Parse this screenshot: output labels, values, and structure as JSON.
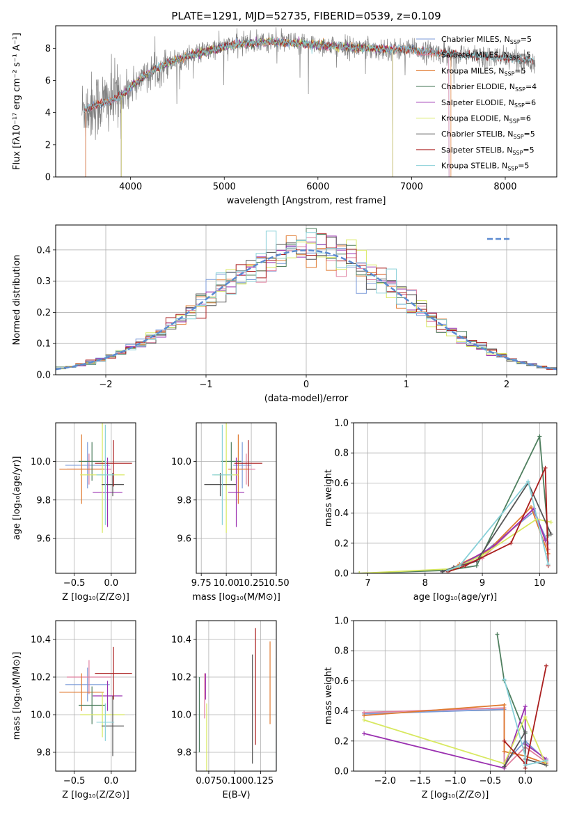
{
  "colors": {
    "Chabrier MILES": "#7a9ad8",
    "Salpeter MILES": "#e07f9f",
    "Kroupa MILES": "#e07a30",
    "Chabrier ELODIE": "#4f7f5f",
    "Salpeter ELODIE": "#9a30b0",
    "Kroupa ELODIE": "#d8e860",
    "Chabrier STELIB": "#555555",
    "Salpeter STELIB": "#aa1e1e",
    "Kroupa STELIB": "#88d0d8"
  },
  "chart_data": [
    {
      "id": "spectrum",
      "type": "line",
      "title": "PLATE=1291, MJD=52735, FIBERID=0539, z=0.109",
      "xlabel": "wavelength [Angstrom, rest frame]",
      "ylabel": "Flux [fλ10⁻¹⁷ erg cm⁻² s⁻¹ A⁻¹]",
      "xlim": [
        3200,
        8550
      ],
      "ylim": [
        0,
        9.4
      ],
      "xticks": [
        "4000",
        "5000",
        "6000",
        "7000",
        "8000"
      ],
      "yticks": [
        "0",
        "2",
        "4",
        "6",
        "8"
      ],
      "grid": false,
      "legend_position": "top-right",
      "legend": [
        "Chabrier MILES, N_SSP=5",
        "Salpeter MILES, N_SSP=5",
        "Kroupa MILES, N_SSP=5",
        "Chabrier ELODIE, N_SSP=4",
        "Salpeter ELODIE, N_SSP=6",
        "Kroupa ELODIE, N_SSP=6",
        "Chabrier STELIB, N_SSP=5",
        "Salpeter STELIB, N_SSP=5",
        "Kroupa STELIB, N_SSP=5"
      ],
      "data_continuum": [
        [
          3500,
          4.2
        ],
        [
          3700,
          4.6
        ],
        [
          3900,
          5.0
        ],
        [
          4000,
          5.6
        ],
        [
          4200,
          6.5
        ],
        [
          4400,
          7.1
        ],
        [
          4600,
          7.5
        ],
        [
          4800,
          7.8
        ],
        [
          5000,
          8.1
        ],
        [
          5200,
          8.3
        ],
        [
          5500,
          8.4
        ],
        [
          6000,
          8.2
        ],
        [
          6500,
          8.0
        ],
        [
          7000,
          7.9
        ],
        [
          7500,
          7.6
        ],
        [
          8000,
          7.4
        ],
        [
          8300,
          7.2
        ]
      ],
      "data_x_range": [
        3480,
        8320
      ]
    },
    {
      "id": "residuals",
      "type": "histogram",
      "xlabel": "(data-model)/error",
      "ylabel": "Normed distribution",
      "xlim": [
        -2.5,
        2.5
      ],
      "ylim": [
        0,
        0.48
      ],
      "xticks": [
        "−2",
        "−1",
        "0",
        "1",
        "2"
      ],
      "yticks": [
        "0.0",
        "0.1",
        "0.2",
        "0.3",
        "0.4"
      ],
      "grid": true,
      "reference_curve": "N(0,1)",
      "bin_width": 0.1
    },
    {
      "id": "age-vs-Z",
      "type": "errorbar",
      "xlabel": "Z [log₁₀(Z/Z⊙)]",
      "ylabel": "age  [log₁₀(age/yr)]",
      "xlim": [
        -0.75,
        0.33
      ],
      "ylim": [
        9.42,
        10.2
      ],
      "xticks": [
        "−0.5",
        "0.0"
      ],
      "yticks": [
        "9.6",
        "9.8",
        "10.0"
      ],
      "grid": true,
      "points": [
        {
          "model": "Chabrier MILES",
          "x": -0.32,
          "xerr": 0.3,
          "y": 9.98,
          "yerr": 0.12
        },
        {
          "model": "Salpeter MILES",
          "x": -0.3,
          "xerr": 0.3,
          "y": 9.96,
          "yerr": 0.08
        },
        {
          "model": "Kroupa MILES",
          "x": -0.4,
          "xerr": 0.3,
          "y": 9.96,
          "yerr": 0.18
        },
        {
          "model": "Chabrier ELODIE",
          "x": -0.26,
          "xerr": 0.18,
          "y": 10.0,
          "yerr": 0.1
        },
        {
          "model": "Salpeter ELODIE",
          "x": -0.05,
          "xerr": 0.2,
          "y": 9.84,
          "yerr": 0.18
        },
        {
          "model": "Kroupa ELODIE",
          "x": -0.12,
          "xerr": 0.3,
          "y": 9.93,
          "yerr": 0.3
        },
        {
          "model": "Chabrier STELIB",
          "x": 0.02,
          "xerr": 0.15,
          "y": 9.88,
          "yerr": 0.06
        },
        {
          "model": "Salpeter STELIB",
          "x": 0.03,
          "xerr": 0.25,
          "y": 9.99,
          "yerr": 0.12
        },
        {
          "model": "Kroupa STELIB",
          "x": -0.08,
          "xerr": 0.12,
          "y": 9.93,
          "yerr": 0.26
        }
      ]
    },
    {
      "id": "age-vs-mass",
      "type": "errorbar",
      "xlabel": "mass [log₁₀(M/M⊙)]",
      "ylabel": "",
      "xlim": [
        9.7,
        10.5
      ],
      "ylim": [
        9.42,
        10.2
      ],
      "xticks": [
        "9.75",
        "10.00",
        "10.25",
        "10.50"
      ],
      "yticks": [
        "9.6",
        "9.8",
        "10.0"
      ],
      "grid": true,
      "points": [
        {
          "model": "Chabrier MILES",
          "x": 10.16,
          "xerr": 0.09,
          "y": 9.98,
          "yerr": 0.12
        },
        {
          "model": "Salpeter MILES",
          "x": 10.2,
          "xerr": 0.09,
          "y": 9.96,
          "yerr": 0.08
        },
        {
          "model": "Kroupa MILES",
          "x": 10.12,
          "xerr": 0.1,
          "y": 9.96,
          "yerr": 0.18
        },
        {
          "model": "Chabrier ELODIE",
          "x": 10.05,
          "xerr": 0.1,
          "y": 10.0,
          "yerr": 0.1
        },
        {
          "model": "Salpeter ELODIE",
          "x": 10.1,
          "xerr": 0.08,
          "y": 9.84,
          "yerr": 0.18
        },
        {
          "model": "Kroupa ELODIE",
          "x": 10.0,
          "xerr": 0.12,
          "y": 9.93,
          "yerr": 0.3
        },
        {
          "model": "Chabrier STELIB",
          "x": 9.94,
          "xerr": 0.16,
          "y": 9.88,
          "yerr": 0.06
        },
        {
          "model": "Salpeter STELIB",
          "x": 10.22,
          "xerr": 0.14,
          "y": 9.99,
          "yerr": 0.12
        },
        {
          "model": "Kroupa STELIB",
          "x": 9.96,
          "xerr": 0.1,
          "y": 9.93,
          "yerr": 0.26
        }
      ]
    },
    {
      "id": "weight-vs-age",
      "type": "line",
      "xlabel": "age  [log₁₀(age/yr)]",
      "ylabel": "mass weight",
      "xlim": [
        6.75,
        10.3
      ],
      "ylim": [
        0,
        1.0
      ],
      "xticks": [
        "7",
        "8",
        "9",
        "10"
      ],
      "yticks": [
        "0.0",
        "0.2",
        "0.4",
        "0.6",
        "0.8",
        "1.0"
      ],
      "grid": true,
      "series": [
        {
          "model": "Chabrier MILES",
          "x": [
            8.3,
            8.6,
            9.0,
            9.9,
            10.15
          ],
          "y": [
            0.01,
            0.05,
            0.13,
            0.41,
            0.2
          ]
        },
        {
          "model": "Salpeter MILES",
          "x": [
            8.3,
            8.5,
            9.0,
            9.9,
            10.15
          ],
          "y": [
            0.01,
            0.04,
            0.1,
            0.43,
            0.16
          ]
        },
        {
          "model": "Kroupa MILES",
          "x": [
            8.4,
            8.6,
            9.1,
            9.85,
            10.15
          ],
          "y": [
            0.01,
            0.06,
            0.15,
            0.44,
            0.13
          ]
        },
        {
          "model": "Chabrier ELODIE",
          "x": [
            6.85,
            8.4,
            8.9,
            10.0,
            10.15
          ],
          "y": [
            0.0,
            0.02,
            0.05,
            0.91,
            0.25
          ]
        },
        {
          "model": "Salpeter ELODIE",
          "x": [
            8.3,
            8.6,
            9.2,
            9.9,
            10.1
          ],
          "y": [
            0.01,
            0.05,
            0.18,
            0.43,
            0.22
          ]
        },
        {
          "model": "Kroupa ELODIE",
          "x": [
            6.85,
            8.5,
            9.0,
            9.95,
            10.2
          ],
          "y": [
            0.0,
            0.03,
            0.12,
            0.36,
            0.34
          ]
        },
        {
          "model": "Chabrier STELIB",
          "x": [
            8.3,
            8.5,
            8.9,
            9.8,
            10.2
          ],
          "y": [
            0.01,
            0.04,
            0.08,
            0.6,
            0.26
          ]
        },
        {
          "model": "Salpeter STELIB",
          "x": [
            8.4,
            8.7,
            9.5,
            10.1,
            10.15
          ],
          "y": [
            0.01,
            0.05,
            0.2,
            0.7,
            0.05
          ]
        },
        {
          "model": "Kroupa STELIB",
          "x": [
            8.4,
            8.6,
            9.8,
            10.15
          ],
          "y": [
            0.02,
            0.05,
            0.61,
            0.06
          ]
        }
      ]
    },
    {
      "id": "mass-vs-Z",
      "type": "errorbar",
      "xlabel": "Z [log₁₀(Z/Z⊙)]",
      "ylabel": "mass [log₁₀(M/M⊙)]",
      "xlim": [
        -0.75,
        0.33
      ],
      "ylim": [
        9.7,
        10.5
      ],
      "xticks": [
        "−0.5",
        "0.0"
      ],
      "yticks": [
        "9.8",
        "10.0",
        "10.2",
        "10.4"
      ],
      "grid": true,
      "points": [
        {
          "model": "Chabrier MILES",
          "x": -0.32,
          "xerr": 0.3,
          "y": 10.16,
          "yerr": 0.09
        },
        {
          "model": "Salpeter MILES",
          "x": -0.3,
          "xerr": 0.3,
          "y": 10.2,
          "yerr": 0.09
        },
        {
          "model": "Kroupa MILES",
          "x": -0.4,
          "xerr": 0.3,
          "y": 10.12,
          "yerr": 0.1
        },
        {
          "model": "Chabrier ELODIE",
          "x": -0.26,
          "xerr": 0.18,
          "y": 10.05,
          "yerr": 0.1
        },
        {
          "model": "Salpeter ELODIE",
          "x": -0.05,
          "xerr": 0.2,
          "y": 10.1,
          "yerr": 0.08
        },
        {
          "model": "Kroupa ELODIE",
          "x": -0.12,
          "xerr": 0.3,
          "y": 10.0,
          "yerr": 0.12
        },
        {
          "model": "Chabrier STELIB",
          "x": 0.02,
          "xerr": 0.15,
          "y": 9.94,
          "yerr": 0.16
        },
        {
          "model": "Salpeter STELIB",
          "x": 0.03,
          "xerr": 0.25,
          "y": 10.22,
          "yerr": 0.14
        },
        {
          "model": "Kroupa STELIB",
          "x": -0.08,
          "xerr": 0.12,
          "y": 9.96,
          "yerr": 0.1
        }
      ]
    },
    {
      "id": "mass-vs-ebv",
      "type": "errorbar",
      "xlabel": "E(B-V)",
      "ylabel": "",
      "xlim": [
        0.063,
        0.14
      ],
      "ylim": [
        9.7,
        10.5
      ],
      "xticks": [
        "0.075",
        "0.100",
        "0.125"
      ],
      "yticks": [
        "9.8",
        "10.0",
        "10.2",
        "10.4"
      ],
      "grid": true,
      "points": [
        {
          "model": "Chabrier MILES",
          "x": 0.066,
          "xerr": 0,
          "y": 10.0,
          "yerr": 0.2
        },
        {
          "model": "Salpeter MILES",
          "x": 0.071,
          "xerr": 0,
          "y": 10.1,
          "yerr": 0.12
        },
        {
          "model": "Kroupa MILES",
          "x": 0.134,
          "xerr": 0,
          "y": 10.17,
          "yerr": 0.22
        },
        {
          "model": "Chabrier ELODIE",
          "x": 0.066,
          "xerr": 0,
          "y": 10.0,
          "yerr": 0.2
        },
        {
          "model": "Salpeter ELODIE",
          "x": 0.072,
          "xerr": 0,
          "y": 10.15,
          "yerr": 0.07
        },
        {
          "model": "Kroupa ELODIE",
          "x": 0.073,
          "xerr": 0,
          "y": 9.88,
          "yerr": 0.18
        },
        {
          "model": "Chabrier STELIB",
          "x": 0.117,
          "xerr": 0,
          "y": 10.03,
          "yerr": 0.29
        },
        {
          "model": "Salpeter STELIB",
          "x": 0.12,
          "xerr": 0,
          "y": 10.15,
          "yerr": 0.31
        },
        {
          "model": "Kroupa STELIB",
          "x": 0.14,
          "xerr": 0,
          "y": 10.0,
          "yerr": 0.3
        }
      ]
    },
    {
      "id": "weight-vs-Z",
      "type": "line",
      "xlabel": "Z [log₁₀(Z/Z⊙)]",
      "ylabel": "mass weight",
      "xlim": [
        -2.45,
        0.45
      ],
      "ylim": [
        0,
        1.0
      ],
      "xticks": [
        "−2.0",
        "−1.5",
        "−1.0",
        "−0.5",
        "0.0"
      ],
      "yticks": [
        "0.0",
        "0.2",
        "0.4",
        "0.6",
        "0.8",
        "1.0"
      ],
      "grid": true,
      "series": [
        {
          "model": "Chabrier MILES",
          "x": [
            -2.3,
            -0.3,
            -0.3,
            0.0,
            0.3
          ],
          "y": [
            0.38,
            0.41,
            0.05,
            0.2,
            0.07
          ]
        },
        {
          "model": "Salpeter MILES",
          "x": [
            -2.3,
            -0.3,
            -0.3,
            0.0,
            0.3
          ],
          "y": [
            0.39,
            0.42,
            0.02,
            0.16,
            0.06
          ]
        },
        {
          "model": "Kroupa MILES",
          "x": [
            -2.3,
            -0.3,
            -0.3,
            0.0,
            0.3
          ],
          "y": [
            0.37,
            0.44,
            0.13,
            0.1,
            0.05
          ]
        },
        {
          "model": "Chabrier ELODIE",
          "x": [
            -0.4,
            -0.3,
            0.0,
            0.0
          ],
          "y": [
            0.91,
            0.6,
            0.25,
            0.02
          ]
        },
        {
          "model": "Salpeter ELODIE",
          "x": [
            -2.3,
            -0.3,
            0.0,
            0.0,
            0.3
          ],
          "y": [
            0.25,
            0.02,
            0.43,
            0.18,
            0.08
          ]
        },
        {
          "model": "Kroupa ELODIE",
          "x": [
            -2.3,
            -0.3,
            0.0,
            0.3
          ],
          "y": [
            0.34,
            0.05,
            0.36,
            0.04
          ]
        },
        {
          "model": "Chabrier STELIB",
          "x": [
            -0.3,
            0.0,
            0.0,
            0.3
          ],
          "y": [
            0.03,
            0.26,
            0.08,
            0.04
          ]
        },
        {
          "model": "Salpeter STELIB",
          "x": [
            -0.3,
            0.0,
            0.0,
            0.3
          ],
          "y": [
            0.2,
            0.05,
            0.02,
            0.7
          ]
        },
        {
          "model": "Kroupa STELIB",
          "x": [
            -0.3,
            0.0,
            0.0,
            0.3
          ],
          "y": [
            0.61,
            0.1,
            0.04,
            0.07
          ]
        }
      ]
    }
  ]
}
